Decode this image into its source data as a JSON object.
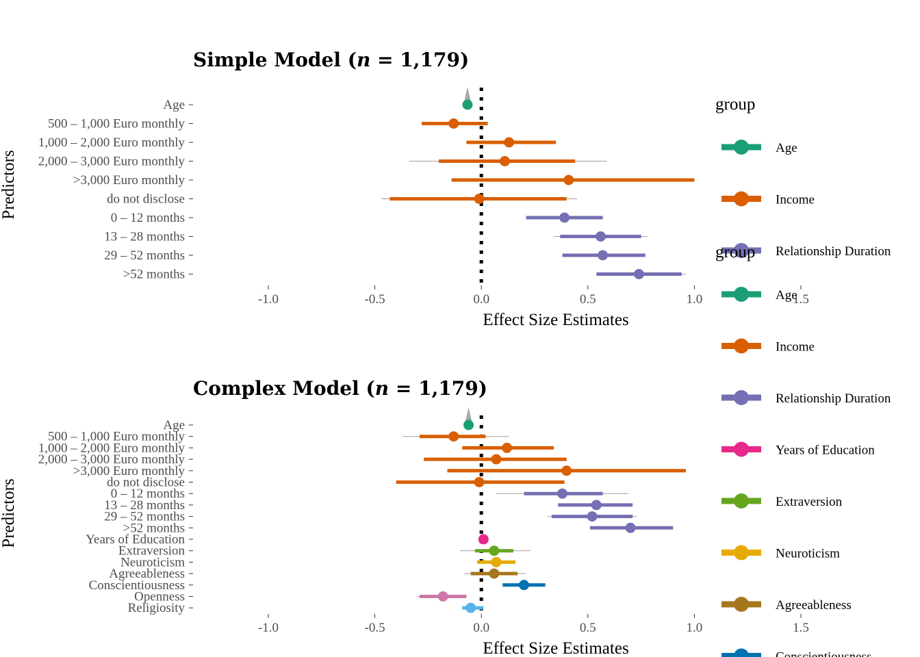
{
  "chart_data": [
    {
      "type": "forest",
      "title_prefix": "Simple Model (",
      "title_n": "n",
      "title_suffix": " = 1,179)",
      "xlabel": "Effect Size Estimates",
      "ylabel": "Predictors",
      "xlim": [
        -1.0,
        1.5
      ],
      "xticks": [
        "-1.0",
        "-0.5",
        "0.0",
        "0.5",
        "1.0",
        "1.5"
      ],
      "reference_line": 0,
      "legend_title": "group",
      "legend": [
        {
          "name": "Age",
          "color": "#1b9e77"
        },
        {
          "name": "Income",
          "color": "#d95f02"
        },
        {
          "name": "Relationship Duration",
          "color": "#7570b3"
        }
      ],
      "rows": [
        {
          "label": "Age",
          "group": "Age",
          "estimate": -0.065,
          "low": -0.08,
          "high": -0.05,
          "outer_low": -0.08,
          "outer_high": -0.05
        },
        {
          "label": "500 – 1,000 Euro monthly",
          "group": "Income",
          "estimate": -0.13,
          "low": -0.28,
          "high": 0.03,
          "outer_low": -0.28,
          "outer_high": 0.03
        },
        {
          "label": "1,000 – 2,000 Euro monthly",
          "group": "Income",
          "estimate": 0.13,
          "low": -0.07,
          "high": 0.35,
          "outer_low": -0.07,
          "outer_high": 0.35
        },
        {
          "label": "2,000 – 3,000 Euro monthly",
          "group": "Income",
          "estimate": 0.11,
          "low": -0.2,
          "high": 0.44,
          "outer_low": -0.34,
          "outer_high": 0.59
        },
        {
          "label": ">3,000 Euro monthly",
          "group": "Income",
          "estimate": 0.41,
          "low": -0.14,
          "high": 1.0,
          "outer_low": -0.14,
          "outer_high": 1.0
        },
        {
          "label": "do not disclose",
          "group": "Income",
          "estimate": -0.01,
          "low": -0.43,
          "high": 0.4,
          "outer_low": -0.47,
          "outer_high": 0.45
        },
        {
          "label": "0 – 12 months",
          "group": "Relationship Duration",
          "estimate": 0.39,
          "low": 0.21,
          "high": 0.57,
          "outer_low": 0.21,
          "outer_high": 0.57
        },
        {
          "label": "13 – 28 months",
          "group": "Relationship Duration",
          "estimate": 0.56,
          "low": 0.37,
          "high": 0.75,
          "outer_low": 0.34,
          "outer_high": 0.78
        },
        {
          "label": "29 – 52 months",
          "group": "Relationship Duration",
          "estimate": 0.57,
          "low": 0.38,
          "high": 0.77,
          "outer_low": 0.38,
          "outer_high": 0.77
        },
        {
          "label": ">52 months",
          "group": "Relationship Duration",
          "estimate": 0.74,
          "low": 0.54,
          "high": 0.94,
          "outer_low": 0.54,
          "outer_high": 0.96
        }
      ]
    },
    {
      "type": "forest",
      "title_prefix": "Complex Model (",
      "title_n": "n",
      "title_suffix": " = 1,179)",
      "xlabel": "Effect Size Estimates",
      "ylabel": "Predictors",
      "xlim": [
        -1.0,
        1.5
      ],
      "xticks": [
        "-1.0",
        "-0.5",
        "0.0",
        "0.5",
        "1.0",
        "1.5"
      ],
      "reference_line": 0,
      "legend_title": "group",
      "legend": [
        {
          "name": "Age",
          "color": "#1b9e77"
        },
        {
          "name": "Income",
          "color": "#d95f02"
        },
        {
          "name": "Relationship Duration",
          "color": "#7570b3"
        },
        {
          "name": "Years of Education",
          "color": "#e7298a"
        },
        {
          "name": "Extraversion",
          "color": "#66a61e"
        },
        {
          "name": "Neuroticism",
          "color": "#e6ab02"
        },
        {
          "name": "Agreeableness",
          "color": "#a6761d"
        },
        {
          "name": "Conscientiousness",
          "color": "#0072b2"
        }
      ],
      "rows": [
        {
          "label": "Age",
          "group": "Age",
          "estimate": -0.06,
          "low": -0.075,
          "high": -0.045,
          "outer_low": -0.075,
          "outer_high": -0.045
        },
        {
          "label": "500 – 1,000 Euro monthly",
          "group": "Income",
          "estimate": -0.13,
          "low": -0.29,
          "high": 0.02,
          "outer_low": -0.37,
          "outer_high": 0.13
        },
        {
          "label": "1,000 – 2,000 Euro monthly",
          "group": "Income",
          "estimate": 0.12,
          "low": -0.09,
          "high": 0.34,
          "outer_low": -0.09,
          "outer_high": 0.34
        },
        {
          "label": "2,000 – 3,000 Euro monthly",
          "group": "Income",
          "estimate": 0.07,
          "low": -0.27,
          "high": 0.4,
          "outer_low": -0.27,
          "outer_high": 0.4
        },
        {
          "label": ">3,000 Euro monthly",
          "group": "Income",
          "estimate": 0.4,
          "low": -0.16,
          "high": 0.96,
          "outer_low": -0.16,
          "outer_high": 0.96
        },
        {
          "label": "do not disclose",
          "group": "Income",
          "estimate": -0.01,
          "low": -0.4,
          "high": 0.39,
          "outer_low": -0.4,
          "outer_high": 0.39
        },
        {
          "label": "0 – 12 months",
          "group": "Relationship Duration",
          "estimate": 0.38,
          "low": 0.2,
          "high": 0.57,
          "outer_low": 0.07,
          "outer_high": 0.69
        },
        {
          "label": "13 – 28 months",
          "group": "Relationship Duration",
          "estimate": 0.54,
          "low": 0.36,
          "high": 0.71,
          "outer_low": 0.36,
          "outer_high": 0.71
        },
        {
          "label": "29 – 52 months",
          "group": "Relationship Duration",
          "estimate": 0.52,
          "low": 0.33,
          "high": 0.71,
          "outer_low": 0.31,
          "outer_high": 0.73
        },
        {
          "label": ">52 months",
          "group": "Relationship Duration",
          "estimate": 0.7,
          "low": 0.51,
          "high": 0.9,
          "outer_low": 0.51,
          "outer_high": 0.9
        },
        {
          "label": "Years of Education",
          "group": "Years of Education",
          "estimate": 0.01,
          "low": -0.01,
          "high": 0.03,
          "outer_low": -0.01,
          "outer_high": 0.03
        },
        {
          "label": "Extraversion",
          "group": "Extraversion",
          "estimate": 0.06,
          "low": -0.03,
          "high": 0.15,
          "outer_low": -0.1,
          "outer_high": 0.23
        },
        {
          "label": "Neuroticism",
          "group": "Neuroticism",
          "estimate": 0.07,
          "low": -0.02,
          "high": 0.16,
          "outer_low": -0.02,
          "outer_high": 0.16
        },
        {
          "label": "Agreeableness",
          "group": "Agreeableness",
          "estimate": 0.06,
          "low": -0.05,
          "high": 0.17,
          "outer_low": -0.08,
          "outer_high": 0.21
        },
        {
          "label": "Conscientiousness",
          "group": "Conscientiousness",
          "estimate": 0.2,
          "low": 0.1,
          "high": 0.3,
          "outer_low": 0.1,
          "outer_high": 0.3
        },
        {
          "label": "Openness",
          "group": "Openness",
          "estimate": -0.18,
          "low": -0.29,
          "high": -0.07,
          "outer_low": -0.3,
          "outer_high": -0.07
        },
        {
          "label": "Religiosity",
          "group": "Religiosity",
          "estimate": -0.05,
          "low": -0.09,
          "high": 0.01,
          "outer_low": -0.09,
          "outer_high": 0.01
        }
      ]
    }
  ],
  "colors": {
    "Age": "#1b9e77",
    "Income": "#d95f02",
    "Relationship Duration": "#7570b3",
    "Years of Education": "#e7298a",
    "Extraversion": "#66a61e",
    "Neuroticism": "#e6ab02",
    "Agreeableness": "#a6761d",
    "Conscientiousness": "#0072b2",
    "Openness": "#cc79a7",
    "Religiosity": "#56b4e9"
  }
}
